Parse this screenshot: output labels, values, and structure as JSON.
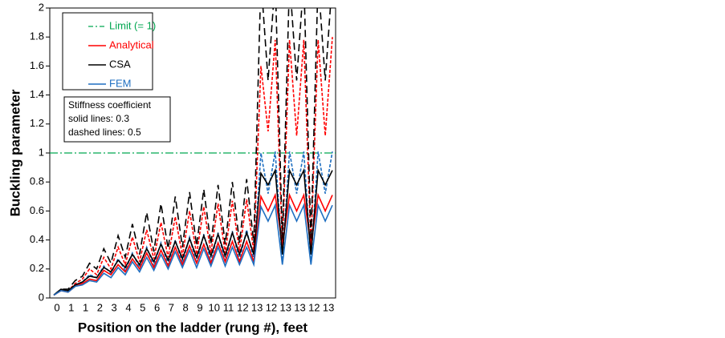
{
  "chart_data": {
    "type": "line",
    "x_label": "Position on the ladder (rung #), feet",
    "y_label": "Buckling parameter",
    "categories": [
      "0",
      null,
      "1",
      null,
      "1",
      null,
      "2",
      null,
      "3",
      null,
      "4",
      null,
      "5",
      null,
      "6",
      null,
      "7",
      null,
      "8",
      null,
      "9",
      null,
      "10",
      null,
      "11",
      null,
      "12",
      null,
      "13",
      null,
      "12",
      null,
      "13",
      null,
      "13",
      null,
      "12",
      null,
      "13",
      null
    ],
    "ylim": [
      0,
      2
    ],
    "yticks": [
      0,
      0.2,
      0.4,
      0.6,
      0.8,
      1,
      1.2,
      1.4,
      1.6,
      1.8,
      2
    ],
    "reference_line": {
      "name": "Limit (= 1)",
      "value": 1,
      "color": "#00a650"
    },
    "series": [
      {
        "name": "Analytical",
        "color": "#ff0000",
        "style": "solid",
        "values": [
          0.02,
          0.05,
          0.04,
          0.08,
          0.1,
          0.13,
          0.12,
          0.19,
          0.16,
          0.23,
          0.18,
          0.27,
          0.2,
          0.31,
          0.21,
          0.33,
          0.22,
          0.35,
          0.23,
          0.36,
          0.24,
          0.37,
          0.24,
          0.38,
          0.25,
          0.39,
          0.25,
          0.39,
          0.25,
          0.7,
          0.6,
          0.71,
          0.36,
          0.71,
          0.6,
          0.71,
          0.36,
          0.71,
          0.6,
          0.71
        ]
      },
      {
        "name": "CSA",
        "color": "#000000",
        "style": "solid",
        "values": [
          0.02,
          0.06,
          0.05,
          0.09,
          0.11,
          0.15,
          0.14,
          0.21,
          0.18,
          0.26,
          0.21,
          0.3,
          0.23,
          0.34,
          0.25,
          0.37,
          0.26,
          0.39,
          0.27,
          0.41,
          0.28,
          0.43,
          0.29,
          0.44,
          0.29,
          0.45,
          0.3,
          0.45,
          0.3,
          0.86,
          0.78,
          0.88,
          0.3,
          0.88,
          0.78,
          0.88,
          0.3,
          0.88,
          0.78,
          0.88
        ]
      },
      {
        "name": "FEM",
        "color": "#1f6fc1",
        "style": "solid",
        "values": [
          0.02,
          0.05,
          0.04,
          0.08,
          0.09,
          0.12,
          0.11,
          0.17,
          0.14,
          0.21,
          0.16,
          0.25,
          0.18,
          0.28,
          0.19,
          0.3,
          0.2,
          0.32,
          0.21,
          0.33,
          0.21,
          0.34,
          0.22,
          0.35,
          0.22,
          0.35,
          0.23,
          0.35,
          0.23,
          0.63,
          0.53,
          0.64,
          0.23,
          0.64,
          0.53,
          0.64,
          0.23,
          0.64,
          0.53,
          0.64
        ]
      },
      {
        "color": "#ff0000",
        "style": "dashed",
        "values": [
          0.02,
          0.05,
          0.05,
          0.1,
          0.13,
          0.2,
          0.16,
          0.28,
          0.2,
          0.35,
          0.23,
          0.42,
          0.25,
          0.47,
          0.27,
          0.52,
          0.28,
          0.56,
          0.29,
          0.6,
          0.3,
          0.63,
          0.31,
          0.65,
          0.31,
          0.67,
          0.32,
          0.68,
          0.32,
          1.6,
          1.15,
          1.78,
          0.35,
          1.78,
          1.12,
          1.78,
          0.35,
          1.78,
          1.12,
          1.8
        ]
      },
      {
        "color": "#000000",
        "style": "dashed",
        "values": [
          0.02,
          0.06,
          0.06,
          0.12,
          0.15,
          0.24,
          0.2,
          0.34,
          0.24,
          0.43,
          0.28,
          0.51,
          0.3,
          0.59,
          0.32,
          0.65,
          0.34,
          0.7,
          0.35,
          0.73,
          0.36,
          0.75,
          0.37,
          0.78,
          0.37,
          0.8,
          0.38,
          0.82,
          0.38,
          2.2,
          1.5,
          2.2,
          0.4,
          2.2,
          1.5,
          2.2,
          0.4,
          2.2,
          1.5,
          2.2
        ]
      },
      {
        "color": "#1f6fc1",
        "style": "dashed",
        "values": [
          0.02,
          0.05,
          0.05,
          0.09,
          0.11,
          0.16,
          0.14,
          0.22,
          0.17,
          0.27,
          0.19,
          0.31,
          0.21,
          0.35,
          0.22,
          0.38,
          0.23,
          0.4,
          0.24,
          0.42,
          0.24,
          0.44,
          0.25,
          0.45,
          0.25,
          0.46,
          0.26,
          0.47,
          0.26,
          1.0,
          0.72,
          1.01,
          0.26,
          1.01,
          0.72,
          1.01,
          0.26,
          1.01,
          0.72,
          1.01
        ]
      }
    ],
    "annotation": [
      "Stiffness coefficient",
      "solid lines: 0.3",
      "dashed lines: 0.5"
    ]
  }
}
